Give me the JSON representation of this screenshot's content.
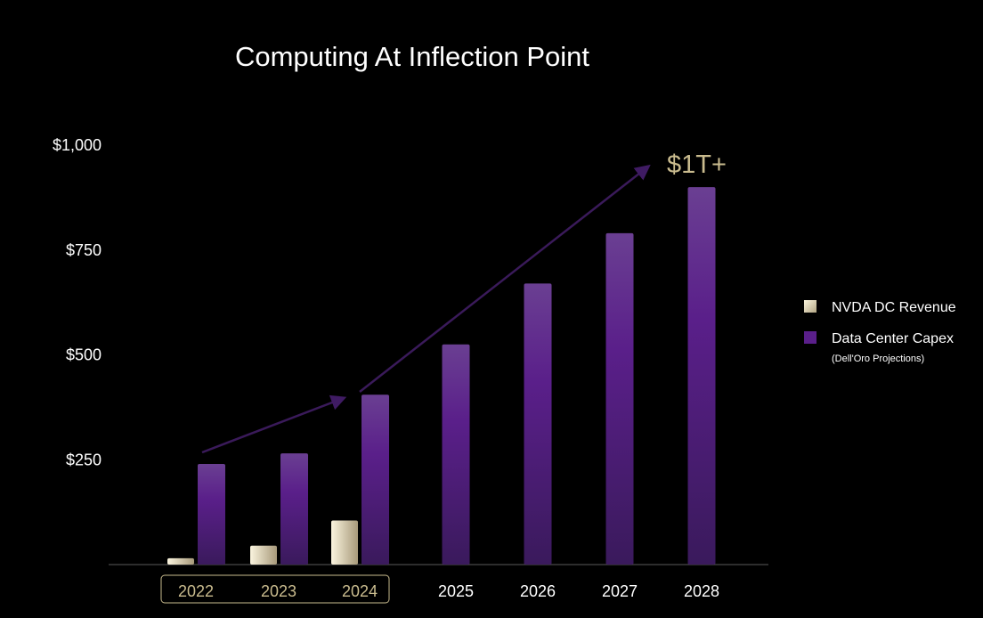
{
  "chart_data": {
    "type": "bar",
    "title": "Computing At Inflection Point",
    "xlabel": "",
    "ylabel": "",
    "categories": [
      "2022",
      "2023",
      "2024",
      "2025",
      "2026",
      "2027",
      "2028"
    ],
    "ylim": [
      0,
      1000
    ],
    "yticks": [
      {
        "value": 250,
        "label": "$250"
      },
      {
        "value": 500,
        "label": "$500"
      },
      {
        "value": 750,
        "label": "$750"
      },
      {
        "value": 1000,
        "label": "$1,000"
      }
    ],
    "series": [
      {
        "name": "NVDA DC Revenue",
        "color": "#d8ceac",
        "values": [
          15,
          45,
          105,
          null,
          null,
          null,
          null
        ]
      },
      {
        "name": "Data Center Capex",
        "color": "#5e2a8c",
        "values": [
          240,
          265,
          405,
          525,
          670,
          790,
          900
        ]
      }
    ],
    "legend": {
      "position": "right",
      "items": [
        {
          "label": "NVDA DC Revenue",
          "color": "#d8ceac"
        },
        {
          "label": "Data Center Capex",
          "color": "#5e2a8c",
          "sublabel": "(Dell'Oro Projections)"
        }
      ]
    },
    "annotation": {
      "text": "$1T+",
      "color": "#c9bb8e"
    },
    "highlighted_categories": [
      "2022",
      "2023",
      "2024"
    ],
    "colors": {
      "background": "#000000",
      "text": "#ffffff",
      "highlight_text": "#c9bb8e",
      "highlight_border": "#c9bb8e",
      "axis": "#5a5a5a",
      "arrow": "#3a1a5a"
    }
  }
}
